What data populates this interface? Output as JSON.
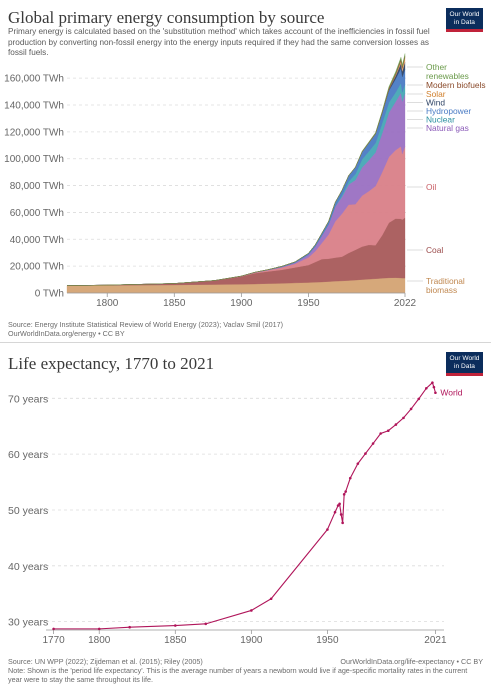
{
  "chart_data": [
    {
      "type": "area",
      "title": "Global primary energy consumption by source",
      "subtitle": "Primary energy is calculated based on the 'substitution method' which takes account of the inefficiencies in fossil fuel production by converting non-fossil energy into the energy inputs required if they had the same conversion losses as fossil fuels.",
      "source": "Source: Energy Institute Statistical Review of World Energy (2023); Vaclav Smil (2017)",
      "footer": "OurWorldInData.org/energy • CC BY",
      "logo": [
        "Our World",
        "in Data"
      ],
      "ylim": [
        0,
        175000
      ],
      "xlim": [
        1770,
        2022
      ],
      "y_ticks": [
        0,
        20000,
        40000,
        60000,
        80000,
        100000,
        120000,
        140000,
        160000
      ],
      "y_tick_labels": [
        "0 TWh",
        "20,000 TWh",
        "40,000 TWh",
        "60,000 TWh",
        "80,000 TWh",
        "100,000 TWh",
        "120,000 TWh",
        "140,000 TWh",
        "160,000 TWh"
      ],
      "x_ticks": [
        1800,
        1850,
        1900,
        1950,
        2022
      ],
      "x_tick_labels": [
        "1800",
        "1850",
        "1900",
        "1950",
        "2022"
      ],
      "x": [
        1770,
        1800,
        1850,
        1880,
        1900,
        1910,
        1920,
        1930,
        1940,
        1950,
        1955,
        1960,
        1965,
        1970,
        1975,
        1980,
        1985,
        1990,
        1995,
        2000,
        2005,
        2010,
        2015,
        2019,
        2020,
        2022
      ],
      "series": [
        {
          "name": "Traditional biomass",
          "color": "#d4a373",
          "values": [
            5500,
            5700,
            6000,
            6300,
            6500,
            6700,
            7000,
            7200,
            7500,
            7800,
            8000,
            8200,
            8500,
            8800,
            9000,
            9300,
            9600,
            10000,
            10300,
            10600,
            11000,
            11300,
            11400,
            11200,
            11100,
            11100
          ]
        },
        {
          "name": "Coal",
          "color": "#a85a5a",
          "values": [
            0,
            200,
            1100,
            3000,
            5800,
            8000,
            9000,
            10000,
            11500,
            13000,
            15000,
            17000,
            17000,
            17500,
            18000,
            20500,
            22500,
            24500,
            25500,
            25000,
            32000,
            41000,
            44000,
            44000,
            43500,
            45000
          ]
        },
        {
          "name": "Oil",
          "color": "#d98088",
          "values": [
            0,
            0,
            0,
            5,
            200,
            500,
            1000,
            1800,
            2700,
            5700,
            8000,
            12000,
            18000,
            27000,
            32000,
            36000,
            34000,
            38000,
            40000,
            44000,
            47000,
            49000,
            51000,
            54000,
            49000,
            53000
          ]
        },
        {
          "name": "Natural gas",
          "color": "#9a70c2",
          "values": [
            0,
            0,
            0,
            0,
            60,
            150,
            250,
            500,
            900,
            2100,
            3500,
            5500,
            7500,
            11000,
            12500,
            15000,
            18000,
            21000,
            23000,
            25000,
            29000,
            33000,
            36000,
            40000,
            39000,
            39500
          ]
        },
        {
          "name": "Nuclear",
          "color": "#46a6b5",
          "values": [
            0,
            0,
            0,
            0,
            0,
            0,
            0,
            0,
            0,
            0,
            0,
            20,
            100,
            250,
            1200,
            2200,
            4400,
            6000,
            6600,
            7000,
            7500,
            7500,
            7000,
            7200,
            7000,
            6700
          ]
        },
        {
          "name": "Hydropower",
          "color": "#4a7bc4",
          "values": [
            0,
            0,
            0,
            0,
            50,
            100,
            200,
            350,
            550,
            950,
            1300,
            1750,
            2200,
            3000,
            3700,
            4400,
            5000,
            5500,
            6300,
            6800,
            7500,
            8800,
            10000,
            11000,
            11400,
            11300
          ]
        },
        {
          "name": "Wind",
          "color": "#2f4466",
          "values": [
            0,
            0,
            0,
            0,
            0,
            0,
            0,
            0,
            0,
            0,
            0,
            0,
            0,
            0,
            0,
            0,
            0,
            10,
            30,
            80,
            260,
            900,
            2200,
            3700,
            4100,
            5300
          ]
        },
        {
          "name": "Solar",
          "color": "#e8a46c",
          "values": [
            0,
            0,
            0,
            0,
            0,
            0,
            0,
            0,
            0,
            0,
            0,
            0,
            0,
            0,
            0,
            0,
            0,
            0,
            0,
            3,
            11,
            100,
            700,
            1800,
            2200,
            3400
          ]
        },
        {
          "name": "Modern biofuels",
          "color": "#8a4a2a",
          "values": [
            0,
            0,
            0,
            0,
            0,
            0,
            0,
            0,
            0,
            0,
            0,
            0,
            0,
            0,
            20,
            60,
            120,
            200,
            260,
            300,
            500,
            1000,
            1100,
            1200,
            1100,
            1300
          ]
        },
        {
          "name": "Other renewables",
          "color": "#6a9a4a",
          "values": [
            0,
            0,
            0,
            0,
            0,
            0,
            0,
            0,
            0,
            0,
            5,
            10,
            20,
            50,
            100,
            150,
            250,
            400,
            500,
            600,
            750,
            1000,
            1300,
            1500,
            1550,
            1700
          ]
        }
      ],
      "legend_labels": {
        "other": [
          "Other",
          "renewables"
        ],
        "biofuels": "Modern biofuels",
        "solar": "Solar",
        "wind": "Wind",
        "hydro": "Hydropower",
        "nuclear": "Nuclear",
        "gas": "Natural gas",
        "oil": "Oil",
        "coal": "Coal",
        "biomass": [
          "Traditional",
          "biomass"
        ]
      },
      "legend_placement": "right",
      "grid": true
    },
    {
      "type": "line",
      "title": "Life expectancy, 1770 to 2021",
      "source": "Source: UN WPP (2022); Zijdeman et al. (2015); Riley (2005)",
      "footer_right": "OurWorldInData.org/life-expectancy • CC BY",
      "note": "Note: Shown is the 'period life expectancy'. This is the average number of years a newborn would live if age-specific mortality rates in the current year were to stay the same throughout its life.",
      "logo": [
        "Our World",
        "in Data"
      ],
      "ylim": [
        28.5,
        74
      ],
      "xlim": [
        1765,
        2024
      ],
      "y_ticks": [
        30,
        40,
        50,
        60,
        70
      ],
      "y_tick_labels": [
        "30 years",
        "40 years",
        "50 years",
        "60 years",
        "70 years"
      ],
      "x_ticks": [
        1770,
        1800,
        1850,
        1900,
        1950,
        2021
      ],
      "x_tick_labels": [
        "1770",
        "1800",
        "1850",
        "1900",
        "1950",
        "2021"
      ],
      "series": [
        {
          "name": "World",
          "color": "#b0155a",
          "x": [
            1770,
            1800,
            1820,
            1850,
            1870,
            1900,
            1913,
            1950,
            1955,
            1957,
            1958,
            1959,
            1960,
            1961,
            1962,
            1965,
            1970,
            1975,
            1980,
            1985,
            1990,
            1995,
            2000,
            2005,
            2010,
            2015,
            2019,
            2020,
            2021
          ],
          "y": [
            28.7,
            28.7,
            29.0,
            29.3,
            29.6,
            32.0,
            34.1,
            46.5,
            49.6,
            50.8,
            51.1,
            49.2,
            47.7,
            52.8,
            53.3,
            55.7,
            58.3,
            60.1,
            61.9,
            63.7,
            64.2,
            65.3,
            66.5,
            68.1,
            69.9,
            71.8,
            72.8,
            72.0,
            71.0
          ]
        }
      ],
      "grid": true
    }
  ]
}
